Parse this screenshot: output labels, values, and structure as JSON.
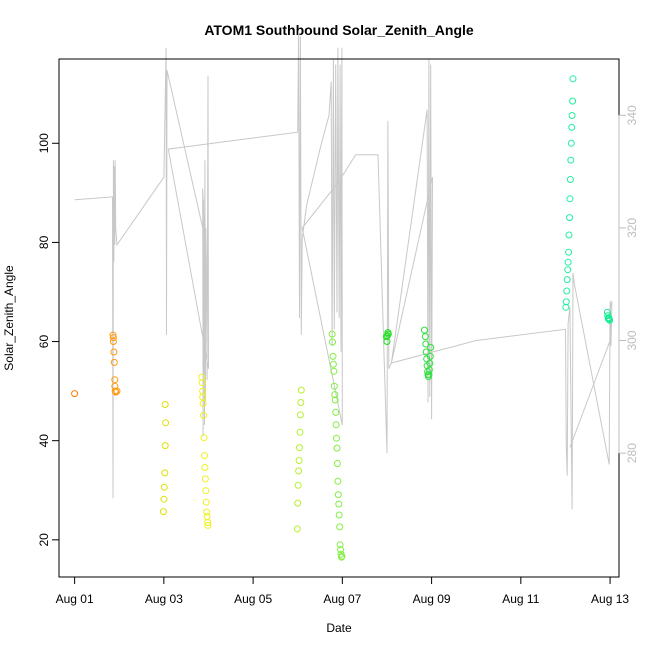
{
  "chart_data": {
    "type": "scatter",
    "title": "ATOM1 Southbound Solar_Zenith_Angle",
    "xlabel": "Date",
    "ylabel": "Solar_Zenith_Angle",
    "x_unit": "days (Aug 2016-style calendar day number)",
    "xlim": [
      0.65,
      13.2
    ],
    "ylim": [
      12.5,
      117
    ],
    "y2lim": [
      258,
      350
    ],
    "x_ticks": [
      {
        "value": 1,
        "label": "Aug 01"
      },
      {
        "value": 3,
        "label": "Aug 03"
      },
      {
        "value": 5,
        "label": "Aug 05"
      },
      {
        "value": 7,
        "label": "Aug 07"
      },
      {
        "value": 9,
        "label": "Aug 09"
      },
      {
        "value": 11,
        "label": "Aug 11"
      },
      {
        "value": 13,
        "label": "Aug 13"
      }
    ],
    "y_ticks": [
      {
        "value": 20,
        "label": "20"
      },
      {
        "value": 40,
        "label": "40"
      },
      {
        "value": 60,
        "label": "60"
      },
      {
        "value": 80,
        "label": "80"
      },
      {
        "value": 100,
        "label": "100"
      }
    ],
    "y2_ticks": [
      {
        "value": 280,
        "label": "280"
      },
      {
        "value": 300,
        "label": "300"
      },
      {
        "value": 320,
        "label": "320"
      },
      {
        "value": 340,
        "label": "340"
      }
    ],
    "colors": {
      "line": "#c8c8c8",
      "right_axis": "#bdbdbd"
    },
    "series": [
      {
        "color": "#ff7f00",
        "points": [
          [
            1.0,
            49.5
          ]
        ]
      },
      {
        "color": "#ff9a10",
        "points": [
          [
            1.86,
            61.3
          ],
          [
            1.87,
            60.8
          ],
          [
            1.87,
            60.0
          ],
          [
            1.88,
            57.9
          ],
          [
            1.89,
            55.8
          ],
          [
            1.9,
            52.3
          ],
          [
            1.9,
            51.0
          ],
          [
            1.91,
            50.0
          ],
          [
            1.92,
            49.8
          ],
          [
            1.95,
            50.0
          ]
        ]
      },
      {
        "color": "#e0e000",
        "points": [
          [
            3.03,
            47.3
          ],
          [
            3.04,
            43.6
          ],
          [
            3.03,
            39.0
          ],
          [
            3.02,
            33.5
          ],
          [
            3.01,
            30.6
          ],
          [
            3.0,
            28.2
          ],
          [
            2.99,
            25.7
          ]
        ]
      },
      {
        "color": "#f0f020",
        "points": [
          [
            3.85,
            52.8
          ],
          [
            3.86,
            51.7
          ],
          [
            3.87,
            50.0
          ],
          [
            3.87,
            48.8
          ],
          [
            3.88,
            47.5
          ],
          [
            3.89,
            45.1
          ],
          [
            3.9,
            40.6
          ],
          [
            3.91,
            37.0
          ],
          [
            3.92,
            34.6
          ],
          [
            3.93,
            32.3
          ],
          [
            3.94,
            29.9
          ],
          [
            3.95,
            27.6
          ],
          [
            3.96,
            25.6
          ],
          [
            3.97,
            24.7
          ],
          [
            3.98,
            23.5
          ],
          [
            3.99,
            22.9
          ]
        ]
      },
      {
        "color": "#b8f030",
        "points": [
          [
            6.08,
            50.2
          ],
          [
            6.07,
            47.7
          ],
          [
            6.06,
            45.2
          ],
          [
            6.05,
            41.7
          ],
          [
            6.04,
            38.6
          ],
          [
            6.03,
            36.0
          ],
          [
            6.02,
            33.9
          ],
          [
            6.01,
            31.0
          ],
          [
            6.0,
            27.4
          ],
          [
            5.99,
            22.2
          ]
        ]
      },
      {
        "color": "#80f040",
        "points": [
          [
            6.77,
            61.5
          ],
          [
            6.78,
            59.9
          ],
          [
            6.79,
            57.0
          ],
          [
            6.8,
            55.4
          ],
          [
            6.81,
            54.0
          ],
          [
            6.82,
            51.0
          ],
          [
            6.83,
            49.3
          ],
          [
            6.84,
            48.2
          ],
          [
            6.85,
            45.7
          ],
          [
            6.86,
            43.2
          ],
          [
            6.87,
            40.5
          ],
          [
            6.88,
            38.5
          ],
          [
            6.89,
            35.4
          ],
          [
            6.9,
            31.8
          ],
          [
            6.91,
            29.1
          ],
          [
            6.92,
            27.2
          ],
          [
            6.93,
            25.0
          ],
          [
            6.94,
            22.6
          ],
          [
            6.95,
            19.0
          ],
          [
            6.96,
            18.0
          ],
          [
            6.97,
            17.1
          ],
          [
            6.98,
            16.5
          ],
          [
            6.99,
            16.7
          ]
        ]
      },
      {
        "color": "#20e020",
        "points": [
          [
            7.99,
            61.0
          ],
          [
            8.0,
            60.0
          ],
          [
            8.01,
            61.2
          ],
          [
            8.02,
            61.8
          ],
          [
            8.03,
            61.5
          ]
        ]
      },
      {
        "color": "#30e040",
        "points": [
          [
            8.84,
            62.3
          ],
          [
            8.86,
            61.0
          ],
          [
            8.87,
            59.5
          ],
          [
            8.88,
            57.9
          ],
          [
            8.89,
            56.5
          ],
          [
            8.9,
            55.1
          ],
          [
            8.91,
            53.9
          ],
          [
            8.92,
            53.3
          ],
          [
            8.93,
            52.9
          ],
          [
            8.94,
            53.3
          ],
          [
            8.95,
            54.3
          ],
          [
            8.96,
            55.6
          ],
          [
            8.97,
            57.0
          ],
          [
            8.98,
            58.8
          ]
        ]
      },
      {
        "color": "#20f0a0",
        "points": [
          [
            12.01,
            66.9
          ],
          [
            12.02,
            68.0
          ],
          [
            12.03,
            70.2
          ],
          [
            12.04,
            72.5
          ],
          [
            12.05,
            74.5
          ],
          [
            12.06,
            76.0
          ],
          [
            12.07,
            78.0
          ],
          [
            12.08,
            81.5
          ],
          [
            12.09,
            85.0
          ],
          [
            12.1,
            88.8
          ],
          [
            12.11,
            92.7
          ],
          [
            12.12,
            96.6
          ],
          [
            12.13,
            100.0
          ],
          [
            12.14,
            103.2
          ],
          [
            12.15,
            105.6
          ],
          [
            12.16,
            108.5
          ],
          [
            12.17,
            113.0
          ]
        ]
      },
      {
        "color": "#10f090",
        "points": [
          [
            12.94,
            65.9
          ],
          [
            12.95,
            65.2
          ],
          [
            12.96,
            64.6
          ],
          [
            12.97,
            64.8
          ],
          [
            12.98,
            64.5
          ],
          [
            12.99,
            64.3
          ]
        ]
      }
    ],
    "secondary_line": {
      "axis": "right",
      "points": [
        [
          1.0,
          325
        ],
        [
          1.85,
          325.5
        ],
        [
          1.86,
          272
        ],
        [
          1.87,
          332
        ],
        [
          1.88,
          314
        ],
        [
          1.89,
          331
        ],
        [
          1.9,
          317
        ],
        [
          1.91,
          332
        ],
        [
          1.92,
          320
        ],
        [
          1.95,
          317
        ],
        [
          3.0,
          329
        ],
        [
          3.05,
          352
        ],
        [
          3.06,
          301
        ],
        [
          3.07,
          348
        ],
        [
          3.1,
          347
        ],
        [
          3.9,
          319
        ],
        [
          3.92,
          317
        ],
        [
          3.87,
          327
        ],
        [
          3.88,
          283
        ],
        [
          3.89,
          325
        ],
        [
          3.91,
          285
        ],
        [
          3.92,
          332
        ],
        [
          3.93,
          289
        ],
        [
          3.94,
          320
        ],
        [
          3.95,
          315
        ],
        [
          3.97,
          293
        ],
        [
          3.99,
          347
        ],
        [
          4.0,
          295
        ],
        [
          3.1,
          334
        ],
        [
          6.0,
          337
        ],
        [
          6.02,
          355
        ],
        [
          6.04,
          304
        ],
        [
          6.06,
          354
        ],
        [
          6.08,
          301
        ],
        [
          6.1,
          318
        ],
        [
          6.2,
          324
        ],
        [
          6.5,
          334
        ],
        [
          6.7,
          340
        ],
        [
          6.75,
          346
        ],
        [
          6.77,
          299
        ],
        [
          6.8,
          350
        ],
        [
          6.82,
          302
        ],
        [
          6.85,
          349
        ],
        [
          6.88,
          305
        ],
        [
          6.9,
          352
        ],
        [
          6.93,
          304
        ],
        [
          6.95,
          349
        ],
        [
          6.97,
          298
        ],
        [
          6.99,
          352
        ],
        [
          7.0,
          285
        ],
        [
          6.1,
          320
        ],
        [
          6.9,
          328
        ],
        [
          7.3,
          333
        ],
        [
          7.8,
          333
        ],
        [
          8.0,
          280
        ],
        [
          8.02,
          339
        ],
        [
          8.04,
          295
        ],
        [
          8.1,
          296
        ],
        [
          8.9,
          341
        ],
        [
          8.92,
          289
        ],
        [
          8.94,
          350
        ],
        [
          8.96,
          290
        ],
        [
          8.98,
          349
        ],
        [
          9.0,
          286
        ],
        [
          9.02,
          329
        ],
        [
          8.1,
          296
        ],
        [
          10.0,
          300
        ],
        [
          12.0,
          302
        ],
        [
          12.02,
          281
        ],
        [
          12.04,
          276
        ],
        [
          12.06,
          303
        ],
        [
          12.1,
          306
        ],
        [
          12.15,
          270
        ],
        [
          12.17,
          312
        ],
        [
          12.2,
          310
        ],
        [
          12.98,
          278
        ],
        [
          13.0,
          307
        ],
        [
          13.02,
          299
        ],
        [
          13.04,
          307
        ],
        [
          12.99,
          305
        ],
        [
          13.0,
          300
        ],
        [
          12.1,
          281
        ]
      ]
    }
  }
}
